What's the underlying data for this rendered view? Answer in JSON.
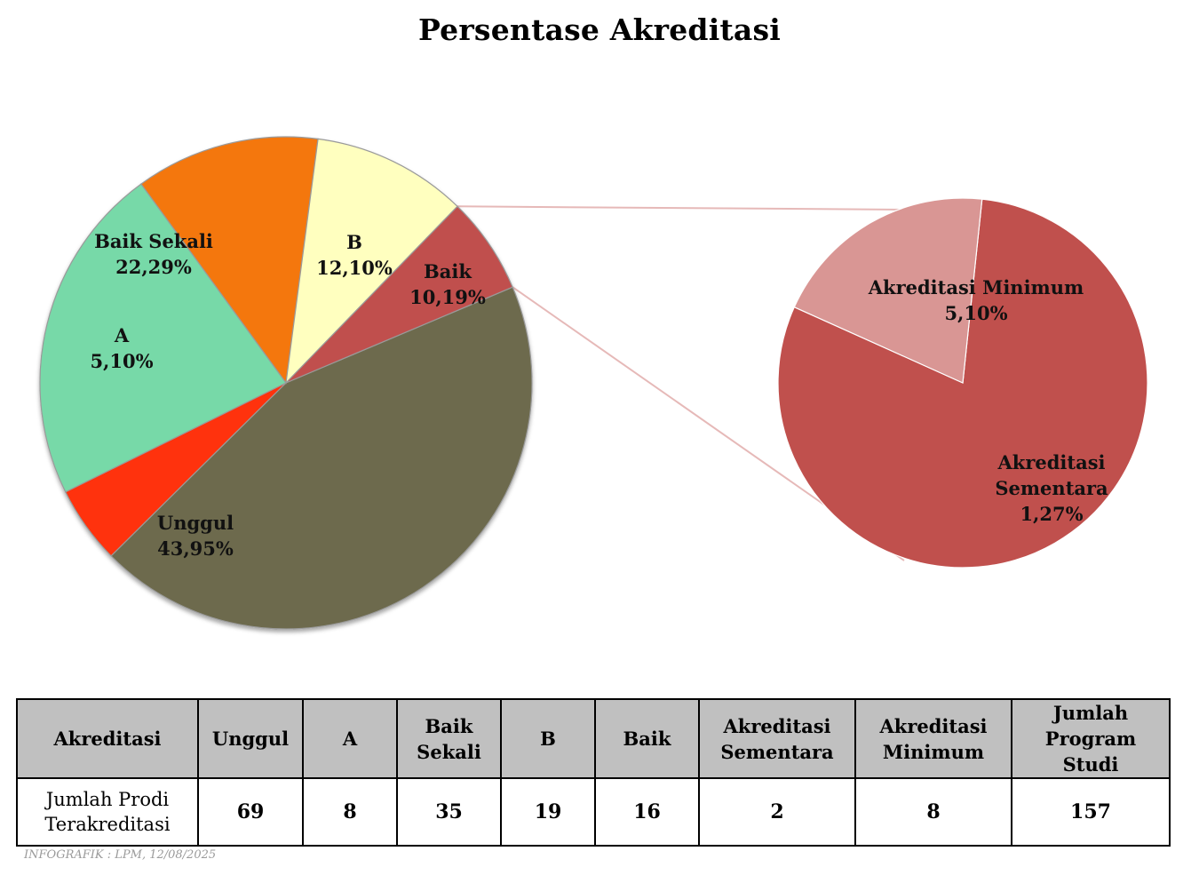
{
  "chart_data": {
    "type": "pie",
    "title": "Persentase Akreditasi",
    "slices": [
      {
        "label": "Unggul",
        "value": 43.95,
        "value_text": "43,95%",
        "color": "#6d6b4d"
      },
      {
        "label": "A",
        "value": 5.1,
        "value_text": "5,10%",
        "color": "#ff3208"
      },
      {
        "label": "Baik Sekali",
        "value": 22.29,
        "value_text": "22,29%",
        "color": "#77d9a8"
      },
      {
        "label": "B",
        "value": 12.1,
        "value_text": "12,10%",
        "color": "#f47711"
      },
      {
        "label": "Baik",
        "value": 10.19,
        "value_text": "10,19%",
        "color": "#ffffbf"
      },
      {
        "label": "",
        "value": 6.37,
        "value_text": "",
        "color": "#c0504d"
      }
    ],
    "breakout": [
      {
        "label": "Akreditasi Minimum",
        "value": 5.1,
        "value_text": "5,10%",
        "color": "#c0504d"
      },
      {
        "label": "Akreditasi Sementara",
        "value": 1.27,
        "value_text": "1,27%",
        "color": "#d99694"
      }
    ],
    "connector_color": "#e6b9b8"
  },
  "table": {
    "headers": [
      "Akreditasi",
      "Unggul",
      "A",
      "Baik Sekali",
      "B",
      "Baik",
      "Akreditasi Sementara",
      "Akreditasi Minimum",
      "Jumlah Program Studi"
    ],
    "row_label": "Jumlah Prodi Terakreditasi",
    "values": [
      "69",
      "8",
      "35",
      "19",
      "16",
      "2",
      "8",
      "157"
    ],
    "header_bg": "#c0c0c0"
  },
  "footnote": "INFOGRAFIK : LPM, 12/08/2025"
}
